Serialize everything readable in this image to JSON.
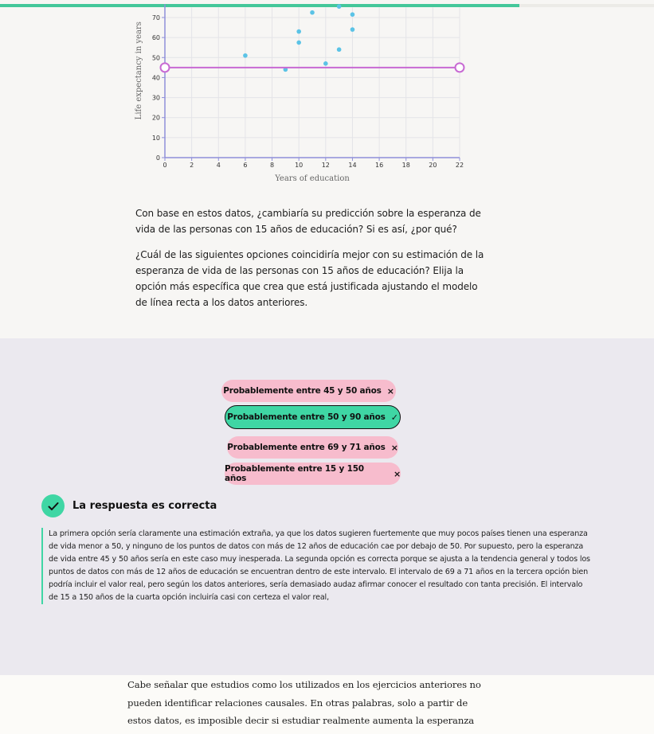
{
  "progress": {
    "fraction": 0.794,
    "color": "#44c79a"
  },
  "chart_data": {
    "type": "scatter",
    "xlabel": "Years of education",
    "ylabel": "Life expectancy in years",
    "xlim": [
      0,
      22
    ],
    "ylim": [
      0,
      75
    ],
    "x_ticks": [
      0,
      2,
      4,
      6,
      8,
      10,
      12,
      14,
      16,
      18,
      20,
      22
    ],
    "y_ticks": [
      0,
      10,
      20,
      30,
      40,
      50,
      60,
      70
    ],
    "grid": true,
    "point_color": "#5bc3e6",
    "points": [
      {
        "x": 6,
        "y": 51
      },
      {
        "x": 9,
        "y": 44
      },
      {
        "x": 10,
        "y": 57.5
      },
      {
        "x": 10,
        "y": 63
      },
      {
        "x": 11,
        "y": 72.5
      },
      {
        "x": 12,
        "y": 47
      },
      {
        "x": 13,
        "y": 54
      },
      {
        "x": 13,
        "y": 75.5
      },
      {
        "x": 14,
        "y": 64
      },
      {
        "x": 14,
        "y": 71.5
      }
    ],
    "fit_line": {
      "x1": 0,
      "y1": 45,
      "x2": 22,
      "y2": 45,
      "color": "#c86ad3"
    }
  },
  "question": {
    "q1": "Con base en estos datos, ¿cambiaría su predicción sobre la esperanza de vida de las personas con 15 años de educación? Si es así, ¿por qué?",
    "q2": "¿Cuál de las siguientes opciones coincidiría mejor con su estimación de la esperanza de vida de las personas con 15 años de educación? Elija la opción más específica que crea que está justificada ajustando el modelo de línea recta a los datos anteriores."
  },
  "options": [
    {
      "label": "Probablemente entre 45 y 50 años",
      "mark": "×",
      "state": "incorrect"
    },
    {
      "label": "Probablemente entre 50 y 90 años",
      "mark": "✓",
      "state": "correct"
    },
    {
      "label": "Probablemente entre 69 y 71 años",
      "mark": "×",
      "state": "incorrect"
    },
    {
      "label": "Probablemente entre 15 y 150 años",
      "mark": "×",
      "state": "incorrect"
    }
  ],
  "result": {
    "title": "La respuesta es correcta",
    "explanation": "La primera opción sería claramente una estimación extraña, ya que los datos sugieren fuertemente que muy pocos países tienen una esperanza de vida menor a 50, y ninguno de los puntos de datos con más de 12 años de educación cae por debajo de 50. Por supuesto, pero la esperanza de vida entre 45 y 50 años sería en este caso muy inesperada. La segunda opción es correcta porque se ajusta a la tendencia general y todos los puntos de datos con más de 12 años de educación se encuentran dentro de este intervalo. El intervalo de 69 a 71 años en la tercera opción bien podría incluir el valor real, pero según los datos anteriores, sería demasiado audaz afirmar conocer el resultado con tanta precisión. El intervalo de 15 a 150 años de la cuarta opción incluiría casi con certeza el valor real,"
  },
  "body": {
    "text": "Cabe señalar que estudios como los utilizados en los ejercicios anteriores no pueden identificar relaciones causales. En otras palabras, solo a partir de estos datos, es imposible decir si estudiar realmente aumenta la esperanza de vida a"
  }
}
